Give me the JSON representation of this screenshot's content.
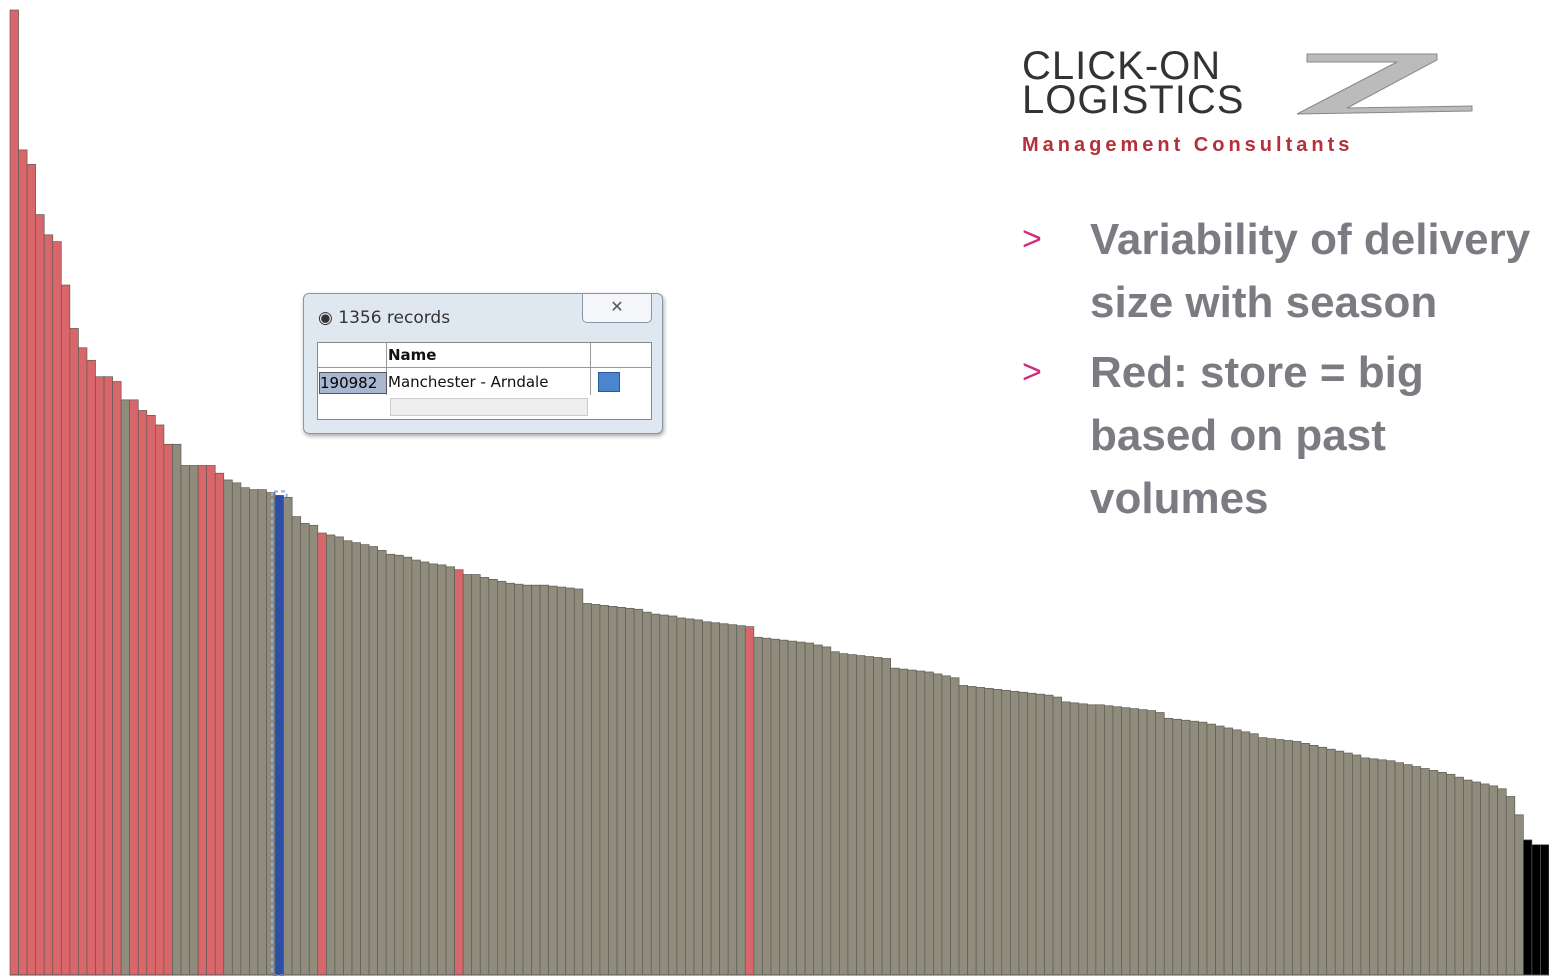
{
  "chart_data": {
    "type": "bar",
    "ylim": [
      0,
      100
    ],
    "values": [
      100,
      85.5,
      84,
      78.8,
      76.7,
      76,
      71.5,
      67,
      65,
      63.7,
      62,
      62,
      61.5,
      59.6,
      59.6,
      58.5,
      58,
      57,
      55,
      55,
      52.8,
      52.8,
      52.8,
      52.8,
      52,
      51.3,
      51,
      50.5,
      50.3,
      50.3,
      50,
      49.7,
      49.5,
      47.5,
      46.8,
      46.6,
      45.8,
      45.6,
      45.4,
      45,
      44.8,
      44.6,
      44.4,
      44,
      43.6,
      43.5,
      43.3,
      43,
      42.8,
      42.6,
      42.5,
      42.3,
      42,
      41.5,
      41.5,
      41.2,
      41,
      40.8,
      40.6,
      40.5,
      40.4,
      40.4,
      40.4,
      40.3,
      40.2,
      40.1,
      40,
      38.5,
      38.4,
      38.3,
      38.2,
      38.1,
      38,
      37.9,
      37.6,
      37.4,
      37.3,
      37.2,
      37,
      36.9,
      36.8,
      36.6,
      36.5,
      36.4,
      36.3,
      36.2,
      36.1,
      35,
      34.9,
      34.8,
      34.7,
      34.6,
      34.5,
      34.4,
      34.2,
      34,
      33.5,
      33.3,
      33.2,
      33.1,
      33,
      32.9,
      32.8,
      31.8,
      31.7,
      31.6,
      31.5,
      31.4,
      31.2,
      31,
      30.8,
      30,
      29.9,
      29.8,
      29.7,
      29.6,
      29.5,
      29.4,
      29.3,
      29.2,
      29.1,
      29,
      28.8,
      28.3,
      28.2,
      28.1,
      28,
      28,
      27.9,
      27.8,
      27.7,
      27.6,
      27.5,
      27.4,
      27.2,
      26.6,
      26.5,
      26.4,
      26.3,
      26.2,
      26,
      25.8,
      25.6,
      25.4,
      25.2,
      25,
      24.6,
      24.5,
      24.4,
      24.3,
      24.2,
      24,
      23.8,
      23.6,
      23.4,
      23.2,
      23,
      22.8,
      22.5,
      22.4,
      22.3,
      22.2,
      22,
      21.8,
      21.6,
      21.4,
      21.2,
      21,
      20.8,
      20.5,
      20.2,
      20,
      19.8,
      19.6,
      19.3,
      18.5,
      16.6,
      14,
      13.5,
      13.5
    ],
    "colors": [
      "#d9666b",
      "#d9666b",
      "#d9666b",
      "#d9666b",
      "#d9666b",
      "#d9666b",
      "#d9666b",
      "#d9666b",
      "#d9666b",
      "#d9666b",
      "#d9666b",
      "#d9666b",
      "#d9666b",
      "#8f8c7e",
      "#d9666b",
      "#d9666b",
      "#d9666b",
      "#d9666b",
      "#d9666b",
      "#8f8c7e",
      "#8f8c7e",
      "#8f8c7e",
      "#d9666b",
      "#d9666b",
      "#d9666b",
      "#8f8c7e",
      "#8f8c7e",
      "#8f8c7e",
      "#8f8c7e",
      "#8f8c7e",
      "#8f8c7e",
      "#2b4ea6",
      "#8f8c7e",
      "#8f8c7e",
      "#8f8c7e",
      "#8f8c7e",
      "#d9666b",
      "#8f8c7e",
      "#8f8c7e",
      "#8f8c7e",
      "#8f8c7e",
      "#8f8c7e",
      "#8f8c7e",
      "#8f8c7e",
      "#8f8c7e",
      "#8f8c7e",
      "#8f8c7e",
      "#8f8c7e",
      "#8f8c7e",
      "#8f8c7e",
      "#8f8c7e",
      "#8f8c7e",
      "#d9666b",
      "#8f8c7e",
      "#8f8c7e",
      "#8f8c7e",
      "#8f8c7e",
      "#8f8c7e",
      "#8f8c7e",
      "#8f8c7e",
      "#8f8c7e",
      "#8f8c7e",
      "#8f8c7e",
      "#8f8c7e",
      "#8f8c7e",
      "#8f8c7e",
      "#8f8c7e",
      "#8f8c7e",
      "#8f8c7e",
      "#8f8c7e",
      "#8f8c7e",
      "#8f8c7e",
      "#8f8c7e",
      "#8f8c7e",
      "#8f8c7e",
      "#8f8c7e",
      "#8f8c7e",
      "#8f8c7e",
      "#8f8c7e",
      "#8f8c7e",
      "#8f8c7e",
      "#8f8c7e",
      "#8f8c7e",
      "#8f8c7e",
      "#8f8c7e",
      "#8f8c7e",
      "#d9666b",
      "#8f8c7e",
      "#8f8c7e",
      "#8f8c7e",
      "#8f8c7e",
      "#8f8c7e",
      "#8f8c7e",
      "#8f8c7e",
      "#8f8c7e",
      "#8f8c7e",
      "#8f8c7e",
      "#8f8c7e",
      "#8f8c7e",
      "#8f8c7e",
      "#8f8c7e",
      "#8f8c7e",
      "#8f8c7e",
      "#8f8c7e",
      "#8f8c7e",
      "#8f8c7e",
      "#8f8c7e",
      "#8f8c7e",
      "#8f8c7e",
      "#8f8c7e",
      "#8f8c7e",
      "#8f8c7e",
      "#8f8c7e",
      "#8f8c7e",
      "#8f8c7e",
      "#8f8c7e",
      "#8f8c7e",
      "#8f8c7e",
      "#8f8c7e",
      "#8f8c7e",
      "#8f8c7e",
      "#8f8c7e",
      "#8f8c7e",
      "#8f8c7e",
      "#8f8c7e",
      "#8f8c7e",
      "#8f8c7e",
      "#8f8c7e",
      "#8f8c7e",
      "#8f8c7e",
      "#8f8c7e",
      "#8f8c7e",
      "#8f8c7e",
      "#8f8c7e",
      "#8f8c7e",
      "#8f8c7e",
      "#8f8c7e",
      "#8f8c7e",
      "#8f8c7e",
      "#8f8c7e",
      "#8f8c7e",
      "#8f8c7e",
      "#8f8c7e",
      "#8f8c7e",
      "#8f8c7e",
      "#8f8c7e",
      "#8f8c7e",
      "#8f8c7e",
      "#8f8c7e",
      "#8f8c7e",
      "#8f8c7e",
      "#8f8c7e",
      "#8f8c7e",
      "#8f8c7e",
      "#8f8c7e",
      "#8f8c7e",
      "#8f8c7e",
      "#8f8c7e",
      "#8f8c7e",
      "#8f8c7e",
      "#8f8c7e",
      "#8f8c7e",
      "#8f8c7e",
      "#8f8c7e",
      "#8f8c7e",
      "#8f8c7e",
      "#8f8c7e",
      "#8f8c7e",
      "#8f8c7e",
      "#8f8c7e",
      "#8f8c7e",
      "#8f8c7e",
      "#8f8c7e",
      "#8f8c7e",
      "#8f8c7e",
      "#8f8c7e",
      "#8f8c7e"
    ]
  },
  "popup": {
    "title": "1356 records",
    "column": "Name",
    "id": "190982",
    "name": "Manchester - Arndale"
  },
  "logo": {
    "line1": "CLICK-ON",
    "line2": "LOGISTICS",
    "tagline": "Management Consultants"
  },
  "bullets": [
    {
      "marker": ">",
      "text": "Variability of delivery size with season"
    },
    {
      "marker": ">",
      "text": "Red: store = big based on past volumes"
    }
  ]
}
